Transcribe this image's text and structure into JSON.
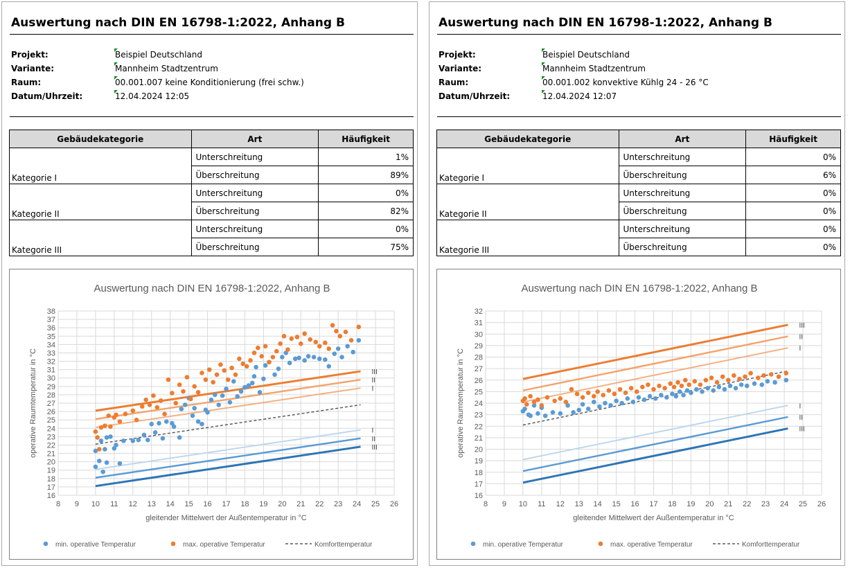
{
  "panels": [
    {
      "title": "Auswertung nach DIN EN 16798-1:2022, Anhang B",
      "meta": {
        "projekt_label": "Projekt:",
        "projekt": "Beispiel Deutschland",
        "variante_label": "Variante:",
        "variante": "Mannheim Stadtzentrum",
        "raum_label": "Raum:",
        "raum": "00.001.007 keine Konditionierung (frei schw.)",
        "datum_label": "Datum/Uhrzeit:",
        "datum": "12.04.2024 12:05"
      },
      "table": {
        "headers": [
          "Gebäudekategorie",
          "Art",
          "Häufigkeit"
        ],
        "groups": [
          {
            "kategorie": "Kategorie I",
            "rows": [
              {
                "art": "Unterschreitung",
                "value": "1%"
              },
              {
                "art": "Überschreitung",
                "value": "89%"
              }
            ]
          },
          {
            "kategorie": "Kategorie II",
            "rows": [
              {
                "art": "Unterschreitung",
                "value": "0%"
              },
              {
                "art": "Überschreitung",
                "value": "82%"
              }
            ]
          },
          {
            "kategorie": "Kategorie III",
            "rows": [
              {
                "art": "Unterschreitung",
                "value": "0%"
              },
              {
                "art": "Überschreitung",
                "value": "75%"
              }
            ]
          }
        ]
      }
    },
    {
      "title": "Auswertung nach DIN EN 16798-1:2022, Anhang B",
      "meta": {
        "projekt_label": "Projekt:",
        "projekt": "Beispiel Deutschland",
        "variante_label": "Variante:",
        "variante": "Mannheim Stadtzentrum",
        "raum_label": "Raum:",
        "raum": "00.001.002 konvektive Kühlg 24 - 26 °C",
        "datum_label": "Datum/Uhrzeit:",
        "datum": "12.04.2024 12:07"
      },
      "table": {
        "headers": [
          "Gebäudekategorie",
          "Art",
          "Häufigkeit"
        ],
        "groups": [
          {
            "kategorie": "Kategorie I",
            "rows": [
              {
                "art": "Unterschreitung",
                "value": "0%"
              },
              {
                "art": "Überschreitung",
                "value": "6%"
              }
            ]
          },
          {
            "kategorie": "Kategorie II",
            "rows": [
              {
                "art": "Unterschreitung",
                "value": "0%"
              },
              {
                "art": "Überschreitung",
                "value": "0%"
              }
            ]
          },
          {
            "kategorie": "Kategorie III",
            "rows": [
              {
                "art": "Unterschreitung",
                "value": "0%"
              },
              {
                "art": "Überschreitung",
                "value": "0%"
              }
            ]
          }
        ]
      }
    }
  ],
  "chart_data": [
    {
      "type": "scatter",
      "title": "Auswertung nach DIN EN 16798-1:2022, Anhang B",
      "xlabel": "gleitender Mittelwert der Außentemperatur in °C",
      "ylabel": "operative Raumtemperatur in °C",
      "xlim": [
        8,
        26
      ],
      "ylim": [
        16,
        38
      ],
      "xstep": 1,
      "ystep": 1,
      "grid": true,
      "legend_position": "bottom",
      "legend": [
        "min. operative Temperatur",
        "max. operative Temperatur",
        "Komforttemperatur"
      ],
      "colors": {
        "min": "#5b9bd5",
        "max": "#ed7d31",
        "comfort": "#595959",
        "upper": [
          "#f4b183",
          "#f4a46d",
          "#ed7d31"
        ],
        "lower": [
          "#bdd7ee",
          "#5b9bd5",
          "#2e75b6"
        ]
      },
      "comfort_line": {
        "x": [
          10,
          24.2
        ],
        "y": [
          22.1,
          26.8
        ]
      },
      "upper_lines": [
        {
          "label": "I",
          "x": [
            10,
            24.2
          ],
          "y": [
            24.1,
            28.8
          ]
        },
        {
          "label": "II",
          "x": [
            10,
            24.2
          ],
          "y": [
            25.1,
            29.8
          ]
        },
        {
          "label": "III",
          "x": [
            10,
            24.2
          ],
          "y": [
            26.1,
            30.8
          ]
        }
      ],
      "lower_lines": [
        {
          "label": "I",
          "x": [
            10,
            24.2
          ],
          "y": [
            19.1,
            23.8
          ]
        },
        {
          "label": "II",
          "x": [
            10,
            24.2
          ],
          "y": [
            18.1,
            22.8
          ]
        },
        {
          "label": "III",
          "x": [
            10,
            24.2
          ],
          "y": [
            17.1,
            21.8
          ]
        }
      ],
      "series_min": [
        [
          10,
          19.4
        ],
        [
          10,
          21.3
        ],
        [
          10.2,
          20.1
        ],
        [
          10.3,
          22.5
        ],
        [
          10.4,
          18.8
        ],
        [
          10.5,
          21.5
        ],
        [
          10.6,
          19.9
        ],
        [
          10.6,
          22.9
        ],
        [
          10.8,
          23.0
        ],
        [
          11,
          21.6
        ],
        [
          11.1,
          22.0
        ],
        [
          11.3,
          19.8
        ],
        [
          11.5,
          22.5
        ],
        [
          12,
          22.5
        ],
        [
          12.3,
          22.6
        ],
        [
          12.6,
          23.2
        ],
        [
          12.8,
          22.6
        ],
        [
          13,
          24.5
        ],
        [
          13.2,
          23.5
        ],
        [
          13.4,
          24.6
        ],
        [
          13.6,
          22.8
        ],
        [
          13.8,
          24.8
        ],
        [
          14.1,
          24.6
        ],
        [
          14.2,
          24.2
        ],
        [
          14.5,
          22.9
        ],
        [
          14.6,
          26.3
        ],
        [
          14.8,
          26.8
        ],
        [
          15,
          27.6
        ],
        [
          15.2,
          25.5
        ],
        [
          15.3,
          26.4
        ],
        [
          15.5,
          24.8
        ],
        [
          15.7,
          24.5
        ],
        [
          15.9,
          26.2
        ],
        [
          16,
          25.9
        ],
        [
          16.2,
          27.4
        ],
        [
          16.4,
          28.0
        ],
        [
          16.6,
          26.8
        ],
        [
          16.8,
          27.9
        ],
        [
          17,
          28.7
        ],
        [
          17.2,
          27.1
        ],
        [
          17.4,
          29.6
        ],
        [
          17.6,
          27.8
        ],
        [
          17.8,
          28.4
        ],
        [
          18,
          28.9
        ],
        [
          18.2,
          29.1
        ],
        [
          18.4,
          29.4
        ],
        [
          18.5,
          30.2
        ],
        [
          18.6,
          31.3
        ],
        [
          18.8,
          28.3
        ],
        [
          19,
          29.9
        ],
        [
          19.1,
          31.5
        ],
        [
          19.3,
          31.9
        ],
        [
          19.6,
          30.4
        ],
        [
          19.8,
          31.1
        ],
        [
          20,
          32.5
        ],
        [
          20.2,
          33.0
        ],
        [
          20.4,
          31.8
        ],
        [
          20.7,
          32.3
        ],
        [
          20.9,
          32.4
        ],
        [
          21.2,
          32.1
        ],
        [
          21.4,
          32.6
        ],
        [
          21.7,
          32.5
        ],
        [
          22,
          32.3
        ],
        [
          22.3,
          32.2
        ],
        [
          22.5,
          31.4
        ],
        [
          22.8,
          32.9
        ],
        [
          23,
          33.5
        ],
        [
          23.2,
          32.5
        ],
        [
          23.5,
          33.8
        ],
        [
          23.8,
          33.1
        ],
        [
          24.1,
          34.5
        ]
      ],
      "series_max": [
        [
          10,
          23.6
        ],
        [
          10.1,
          22.9
        ],
        [
          10.2,
          21.5
        ],
        [
          10.3,
          24.1
        ],
        [
          10.5,
          24.3
        ],
        [
          10.7,
          25.5
        ],
        [
          10.8,
          24.2
        ],
        [
          11,
          25.3
        ],
        [
          11.1,
          25.6
        ],
        [
          11.3,
          24.8
        ],
        [
          11.6,
          25.7
        ],
        [
          12,
          26.1
        ],
        [
          12.2,
          25.0
        ],
        [
          12.5,
          26.6
        ],
        [
          12.7,
          27.4
        ],
        [
          12.9,
          26.8
        ],
        [
          13.1,
          27.9
        ],
        [
          13.3,
          26.5
        ],
        [
          13.5,
          27.3
        ],
        [
          13.7,
          25.7
        ],
        [
          13.9,
          29.8
        ],
        [
          14.1,
          28.2
        ],
        [
          14.3,
          27.0
        ],
        [
          14.5,
          29.2
        ],
        [
          14.7,
          28.4
        ],
        [
          14.9,
          30.1
        ],
        [
          15.1,
          27.5
        ],
        [
          15.3,
          29.0
        ],
        [
          15.5,
          28.3
        ],
        [
          15.7,
          30.6
        ],
        [
          15.9,
          29.8
        ],
        [
          16.1,
          31.0
        ],
        [
          16.3,
          29.5
        ],
        [
          16.5,
          30.4
        ],
        [
          16.7,
          31.6
        ],
        [
          16.9,
          30.9
        ],
        [
          17.1,
          29.8
        ],
        [
          17.3,
          31.2
        ],
        [
          17.5,
          30.4
        ],
        [
          17.7,
          32.3
        ],
        [
          17.9,
          31.7
        ],
        [
          18.1,
          31.4
        ],
        [
          18.3,
          32.1
        ],
        [
          18.5,
          33.0
        ],
        [
          18.7,
          33.6
        ],
        [
          18.9,
          32.6
        ],
        [
          19.1,
          33.8
        ],
        [
          19.3,
          31.9
        ],
        [
          19.5,
          32.5
        ],
        [
          19.7,
          33.2
        ],
        [
          19.9,
          34.1
        ],
        [
          20.1,
          35.0
        ],
        [
          20.3,
          33.4
        ],
        [
          20.5,
          34.7
        ],
        [
          20.8,
          34.9
        ],
        [
          21,
          34.1
        ],
        [
          21.2,
          35.3
        ],
        [
          21.5,
          34.6
        ],
        [
          21.8,
          34.3
        ],
        [
          22,
          33.8
        ],
        [
          22.3,
          34.2
        ],
        [
          22.5,
          33.5
        ],
        [
          22.7,
          36.3
        ],
        [
          22.9,
          35.6
        ],
        [
          23.1,
          35.0
        ],
        [
          23.4,
          35.5
        ],
        [
          23.7,
          34.5
        ],
        [
          24.1,
          36.1
        ]
      ]
    },
    {
      "type": "scatter",
      "title": "Auswertung nach DIN EN 16798-1:2022, Anhang B",
      "xlabel": "gleitender Mittelwert der Außentemperatur in °C",
      "ylabel": "operative Raumtemperatur in °C",
      "xlim": [
        8,
        26
      ],
      "ylim": [
        16,
        32
      ],
      "xstep": 1,
      "ystep": 1,
      "grid": true,
      "legend_position": "bottom",
      "legend": [
        "min. operative Temperatur",
        "max. operative Temperatur",
        "Komforttemperatur"
      ],
      "colors": {
        "min": "#5b9bd5",
        "max": "#ed7d31",
        "comfort": "#595959",
        "upper": [
          "#f4b183",
          "#f4a46d",
          "#ed7d31"
        ],
        "lower": [
          "#bdd7ee",
          "#5b9bd5",
          "#2e75b6"
        ]
      },
      "comfort_line": {
        "x": [
          10,
          24.2
        ],
        "y": [
          22.1,
          26.8
        ]
      },
      "upper_lines": [
        {
          "label": "I",
          "x": [
            10,
            24.2
          ],
          "y": [
            24.1,
            28.8
          ]
        },
        {
          "label": "II",
          "x": [
            10,
            24.2
          ],
          "y": [
            25.1,
            29.8
          ]
        },
        {
          "label": "III",
          "x": [
            10,
            24.2
          ],
          "y": [
            26.1,
            30.8
          ]
        }
      ],
      "lower_lines": [
        {
          "label": "I",
          "x": [
            10,
            24.2
          ],
          "y": [
            19.1,
            23.8
          ]
        },
        {
          "label": "II",
          "x": [
            10,
            24.2
          ],
          "y": [
            18.1,
            22.8
          ]
        },
        {
          "label": "III",
          "x": [
            10,
            24.2
          ],
          "y": [
            17.1,
            21.8
          ]
        }
      ],
      "series_min": [
        [
          10,
          23.3
        ],
        [
          10.1,
          23.5
        ],
        [
          10.3,
          23.0
        ],
        [
          10.4,
          22.9
        ],
        [
          10.6,
          23.8
        ],
        [
          10.8,
          23.1
        ],
        [
          11,
          23.6
        ],
        [
          11.2,
          22.9
        ],
        [
          11.6,
          23.2
        ],
        [
          12,
          23.1
        ],
        [
          12.4,
          23.8
        ],
        [
          12.7,
          23.2
        ],
        [
          13,
          23.4
        ],
        [
          13.2,
          23.9
        ],
        [
          13.5,
          23.5
        ],
        [
          13.8,
          24.1
        ],
        [
          14.1,
          23.7
        ],
        [
          14.4,
          24.0
        ],
        [
          14.7,
          23.8
        ],
        [
          15,
          24.2
        ],
        [
          15.3,
          24.0
        ],
        [
          15.6,
          24.4
        ],
        [
          15.9,
          24.1
        ],
        [
          16.2,
          24.5
        ],
        [
          16.5,
          24.3
        ],
        [
          16.8,
          24.6
        ],
        [
          17.1,
          24.4
        ],
        [
          17.4,
          24.7
        ],
        [
          17.7,
          24.5
        ],
        [
          18,
          24.8
        ],
        [
          18.2,
          24.6
        ],
        [
          18.4,
          25.0
        ],
        [
          18.6,
          24.7
        ],
        [
          18.8,
          25.1
        ],
        [
          19,
          24.9
        ],
        [
          19.3,
          25.2
        ],
        [
          19.6,
          25.0
        ],
        [
          19.9,
          25.3
        ],
        [
          20.2,
          25.1
        ],
        [
          20.5,
          25.4
        ],
        [
          20.8,
          25.2
        ],
        [
          21.1,
          25.5
        ],
        [
          21.4,
          25.3
        ],
        [
          21.7,
          25.6
        ],
        [
          22,
          25.5
        ],
        [
          22.4,
          25.7
        ],
        [
          22.8,
          25.6
        ],
        [
          23.1,
          25.9
        ],
        [
          23.5,
          25.8
        ],
        [
          24.1,
          26.0
        ]
      ],
      "series_max": [
        [
          10,
          24.2
        ],
        [
          10.1,
          24.4
        ],
        [
          10.2,
          23.9
        ],
        [
          10.4,
          24.6
        ],
        [
          10.6,
          24.1
        ],
        [
          10.8,
          24.3
        ],
        [
          11,
          23.8
        ],
        [
          11.3,
          24.5
        ],
        [
          11.7,
          24.2
        ],
        [
          12,
          24.4
        ],
        [
          12.3,
          24.1
        ],
        [
          12.6,
          25.2
        ],
        [
          12.9,
          24.8
        ],
        [
          13.2,
          24.5
        ],
        [
          13.5,
          24.9
        ],
        [
          13.8,
          24.6
        ],
        [
          14,
          25.0
        ],
        [
          14.3,
          24.7
        ],
        [
          14.6,
          25.1
        ],
        [
          14.9,
          24.8
        ],
        [
          15.2,
          25.2
        ],
        [
          15.5,
          24.9
        ],
        [
          15.8,
          25.3
        ],
        [
          16.1,
          25.0
        ],
        [
          16.4,
          25.4
        ],
        [
          16.7,
          25.6
        ],
        [
          17,
          25.2
        ],
        [
          17.3,
          25.5
        ],
        [
          17.6,
          25.3
        ],
        [
          17.9,
          25.7
        ],
        [
          18.1,
          25.4
        ],
        [
          18.3,
          25.8
        ],
        [
          18.5,
          25.5
        ],
        [
          18.7,
          26.0
        ],
        [
          18.9,
          25.6
        ],
        [
          19.2,
          25.9
        ],
        [
          19.5,
          25.6
        ],
        [
          19.8,
          26.0
        ],
        [
          20.1,
          26.2
        ],
        [
          20.4,
          25.8
        ],
        [
          20.7,
          26.3
        ],
        [
          21,
          26.0
        ],
        [
          21.3,
          26.4
        ],
        [
          21.6,
          26.1
        ],
        [
          21.9,
          26.3
        ],
        [
          22.2,
          26.6
        ],
        [
          22.6,
          26.2
        ],
        [
          22.9,
          26.4
        ],
        [
          23.3,
          26.5
        ],
        [
          23.7,
          26.3
        ],
        [
          24.1,
          26.6
        ]
      ]
    }
  ]
}
